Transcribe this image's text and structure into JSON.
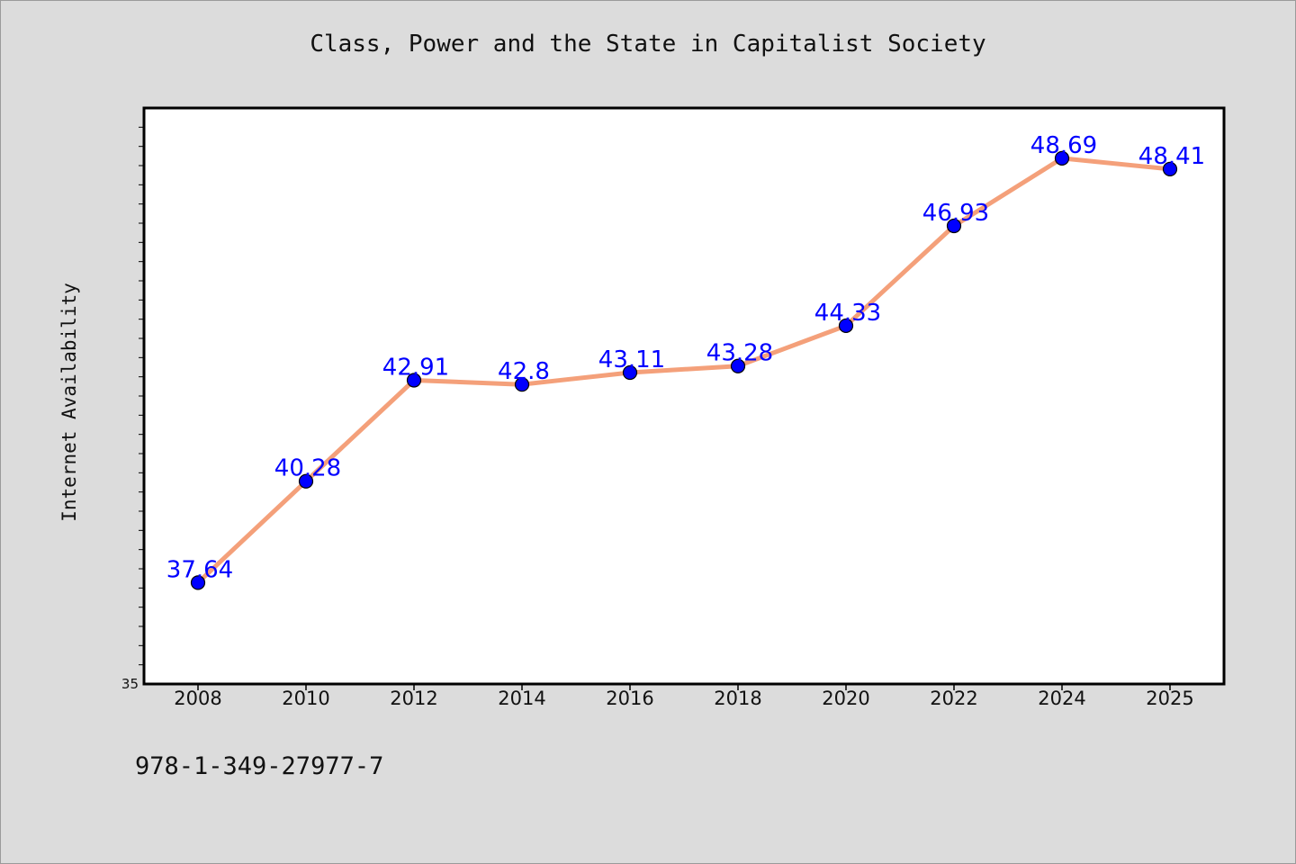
{
  "chart_data": {
    "type": "line",
    "title": "Class, Power and the State in Capitalist Society",
    "xlabel": "",
    "ylabel": "Internet Availability",
    "categories": [
      "2008",
      "2010",
      "2012",
      "2014",
      "2016",
      "2018",
      "2020",
      "2022",
      "2024",
      "2025"
    ],
    "series": [
      {
        "values": [
          37.64,
          40.28,
          42.91,
          42.8,
          43.11,
          43.28,
          44.33,
          46.93,
          48.69,
          48.41
        ],
        "data_labels": [
          "37.64",
          "40.28",
          "42.91",
          "42.8",
          "43.11",
          "43.28",
          "44.33",
          "46.93",
          "48.69",
          "48.41"
        ]
      }
    ],
    "ytick_labels": [
      "35"
    ],
    "ylim": [
      35,
      50
    ],
    "grid": false,
    "legend": "none",
    "colors": {
      "line": "#f4a07a",
      "marker": "#0000ff",
      "label": "#0000ff",
      "plot_background": "#ffffff",
      "figure_background": "#dcdcdc"
    }
  },
  "footer": {
    "identifier": "978-1-349-27977-7"
  }
}
